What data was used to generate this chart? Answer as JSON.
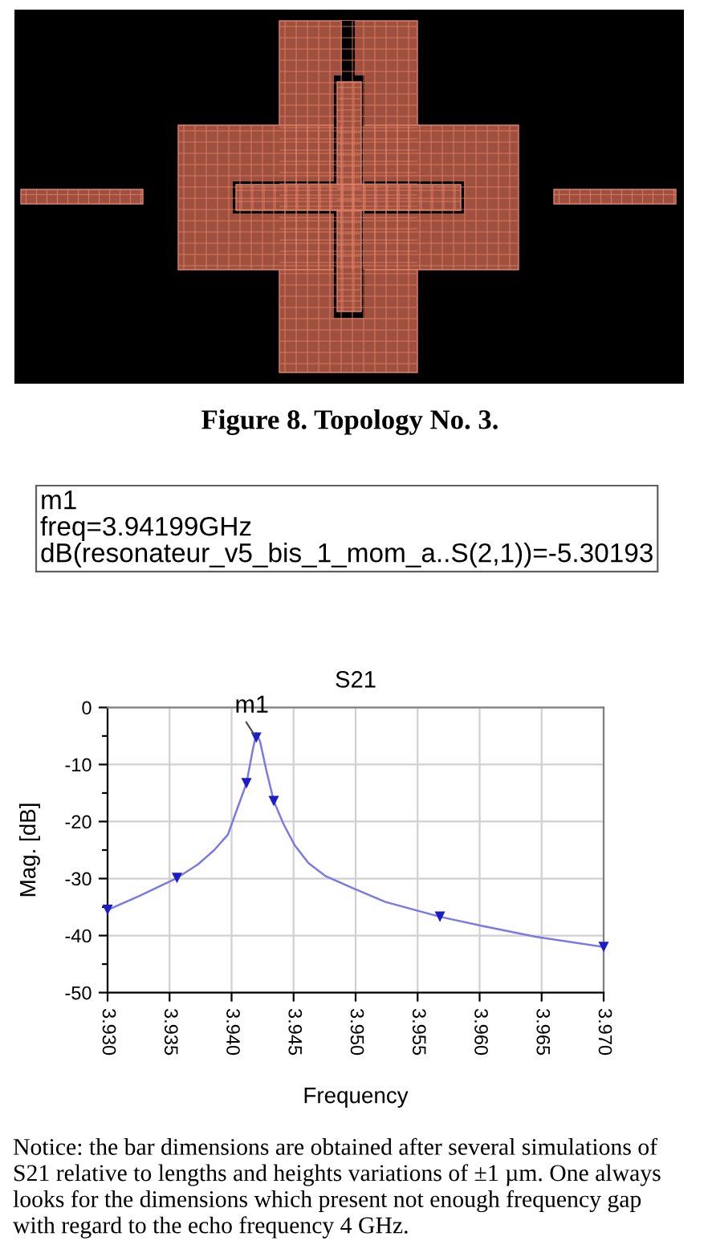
{
  "chart_data": {
    "type": "line",
    "title": "S21",
    "xlabel": "Frequency",
    "ylabel": "Mag. [dB]",
    "series": [
      {
        "color": "#7a7ae6",
        "x": [
          3.93,
          3.9325,
          3.9356,
          3.9373,
          3.9386,
          3.9397,
          3.9405,
          3.9412,
          3.9417,
          3.942,
          3.9423,
          3.9428,
          3.9434,
          3.9442,
          3.9451,
          3.9462,
          3.9476,
          3.9498,
          3.9524,
          3.9568,
          3.9602,
          3.9645,
          3.97
        ],
        "values": [
          -35.5,
          -33.1,
          -29.9,
          -27.5,
          -25.0,
          -22.3,
          -17.5,
          -13.3,
          -7.5,
          -4.5,
          -6.0,
          -11.0,
          -16.4,
          -20.5,
          -24.2,
          -27.3,
          -29.6,
          -31.7,
          -34.1,
          -36.7,
          -38.3,
          -40.2,
          -42.0
        ]
      },
      {
        "type": "scatter",
        "color": "#1c1cc8",
        "marker": "triangle",
        "x": [
          3.93,
          3.9356,
          3.9412,
          3.94199,
          3.9434,
          3.9568,
          3.97
        ],
        "values": [
          -35.5,
          -29.9,
          -13.3,
          -5.30193,
          -16.4,
          -36.7,
          -42.0
        ]
      }
    ],
    "xlim": [
      3.93,
      3.97
    ],
    "xticks": [
      {
        "value": 3.93,
        "label": "3.930"
      },
      {
        "value": 3.935,
        "label": "3.935"
      },
      {
        "value": 3.94,
        "label": "3.940"
      },
      {
        "value": 3.945,
        "label": "3.945"
      },
      {
        "value": 3.95,
        "label": "3.950"
      },
      {
        "value": 3.955,
        "label": "3.955"
      },
      {
        "value": 3.96,
        "label": "3.960"
      },
      {
        "value": 3.965,
        "label": "3.965"
      },
      {
        "value": 3.97,
        "label": "3.970"
      }
    ],
    "ylim": [
      -50,
      0
    ],
    "yticks": [
      0,
      {
        "value": -5,
        "label": null
      },
      -10,
      {
        "value": -15,
        "label": null
      },
      -20,
      {
        "value": -25,
        "label": null
      },
      -30,
      {
        "value": -35,
        "label": null
      },
      -40,
      {
        "value": -45,
        "label": null
      },
      -50
    ],
    "grid": true,
    "annotations": [
      "Figure 8. Topology No. 3.",
      "m1\nfreq=3.94199GHz\ndB(resonateur_v5_bis_1_mom_a..S(2,1))=-5.30193",
      {
        "text": "m1",
        "x": 3.94199,
        "y": -5.30193
      },
      "Notice: the bar dimensions are obtained after several simulations of\nS21 relative to lengths and heights variations of ±1 µm. One always\nlooks for the dimensions which present not enough frequency gap\nwith regard to the echo frequency 4 GHz."
    ]
  }
}
